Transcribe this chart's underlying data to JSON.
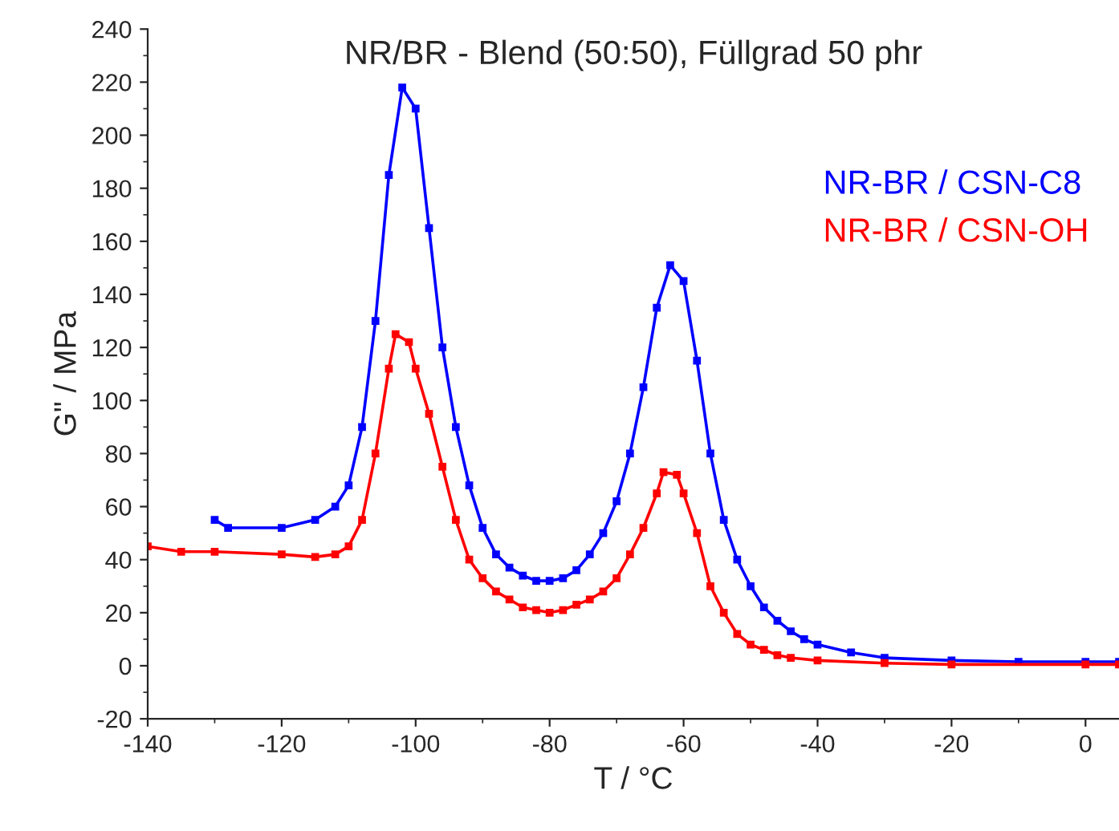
{
  "chart_data": {
    "type": "line",
    "title": "NR/BR - Blend (50:50), Füllgrad 50 phr",
    "xlabel": "T / °C",
    "ylabel": "G\" / MPa",
    "xlim": [
      -140,
      5
    ],
    "xticks": [
      -140,
      -120,
      -100,
      -80,
      -60,
      -40,
      -20,
      0
    ],
    "ylim": [
      -20,
      240
    ],
    "yticks": [
      -20,
      0,
      20,
      40,
      60,
      80,
      100,
      120,
      140,
      160,
      180,
      200,
      220,
      240
    ],
    "grid": false,
    "legend": "top right",
    "marker": "square",
    "line_style": "solid",
    "series": [
      {
        "name": "NR-BR / CSN-C8",
        "color": "#0000ff",
        "x": [
          -130,
          -128,
          -120,
          -115,
          -112,
          -110,
          -108,
          -106,
          -104,
          -102,
          -100,
          -98,
          -96,
          -94,
          -92,
          -90,
          -88,
          -86,
          -84,
          -82,
          -80,
          -78,
          -76,
          -74,
          -72,
          -70,
          -68,
          -66,
          -64,
          -62,
          -60,
          -58,
          -56,
          -54,
          -52,
          -50,
          -48,
          -46,
          -44,
          -42,
          -40,
          -35,
          -30,
          -20,
          -10,
          0,
          5
        ],
        "values": [
          55,
          52,
          52,
          55,
          60,
          68,
          90,
          130,
          185,
          218,
          210,
          165,
          120,
          90,
          68,
          52,
          42,
          37,
          34,
          32,
          32,
          33,
          36,
          42,
          50,
          62,
          80,
          105,
          135,
          151,
          145,
          115,
          80,
          55,
          40,
          30,
          22,
          17,
          13,
          10,
          8,
          5,
          3,
          2,
          1.5,
          1.5,
          1.5
        ]
      },
      {
        "name": "NR-BR / CSN-OH",
        "color": "#ff0000",
        "x": [
          -140,
          -135,
          -130,
          -120,
          -115,
          -112,
          -110,
          -108,
          -106,
          -104,
          -103,
          -101,
          -100,
          -98,
          -96,
          -94,
          -92,
          -90,
          -88,
          -86,
          -84,
          -82,
          -80,
          -78,
          -76,
          -74,
          -72,
          -70,
          -68,
          -66,
          -64,
          -63,
          -61,
          -60,
          -58,
          -56,
          -54,
          -52,
          -50,
          -48,
          -46,
          -44,
          -40,
          -30,
          -20,
          0,
          5
        ],
        "values": [
          45,
          43,
          43,
          42,
          41,
          42,
          45,
          55,
          80,
          112,
          125,
          122,
          112,
          95,
          75,
          55,
          40,
          33,
          28,
          25,
          22,
          21,
          20,
          21,
          23,
          25,
          28,
          33,
          42,
          52,
          65,
          73,
          72,
          65,
          50,
          30,
          20,
          12,
          8,
          6,
          4,
          3,
          2,
          1,
          0.5,
          0.5,
          0.5
        ]
      }
    ]
  }
}
